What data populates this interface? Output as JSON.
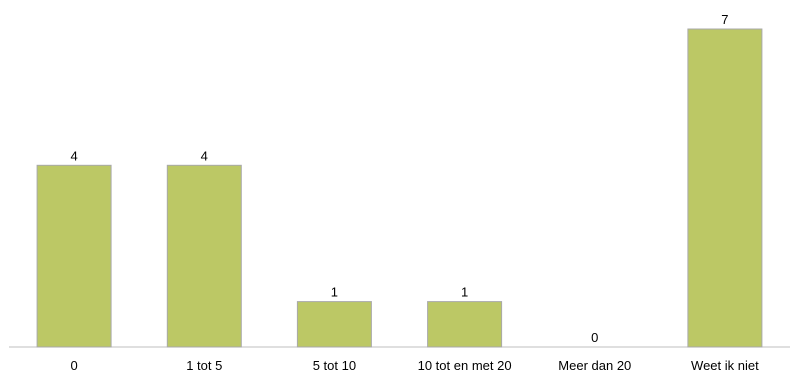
{
  "chart_data": {
    "type": "bar",
    "categories": [
      "0",
      "1 tot 5",
      "5 tot 10",
      "10 tot en met 20",
      "Meer dan 20",
      "Weet ik niet"
    ],
    "values": [
      4,
      4,
      1,
      1,
      0,
      7
    ],
    "data_labels": [
      "4",
      "4",
      "1",
      "1",
      "0",
      "7"
    ],
    "title": "",
    "xlabel": "",
    "ylabel": "",
    "ylim": [
      0,
      7
    ],
    "grid": false,
    "legend": "none",
    "bar_color": "#bcc865"
  }
}
